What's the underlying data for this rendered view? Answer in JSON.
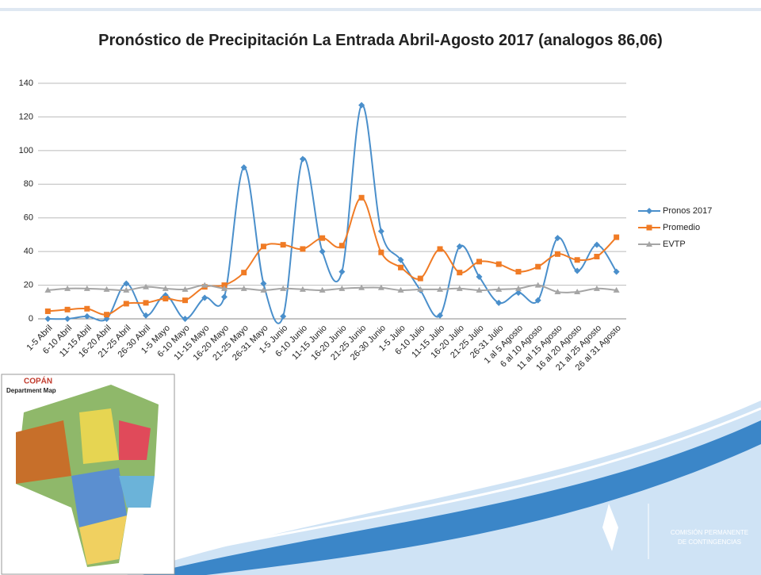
{
  "chart_data": {
    "type": "line",
    "title": "Pronóstico de Precipitación La Entrada Abril-Agosto 2017 (analogos 86,06)",
    "categories": [
      "1-5 Abril",
      "6-10 Abril",
      "11-15 Abril",
      "16-20 Abril",
      "21-25 Abril",
      "26-30 Abril",
      "1-5 Mayo",
      "6-10 Mayo",
      "11-15 Mayo",
      "16-20 Mayo",
      "21-25 Mayo",
      "26-31 Mayo",
      "1-5 Junio",
      "6-10 Junio",
      "11-15 Junio",
      "16-20 Junio",
      "21-25 Junio",
      "26-30 Junio",
      "1-5 Julio",
      "6-10 Julio",
      "11-15 Julio",
      "16-20 Julio",
      "21-25 Julio",
      "26-31 Julio",
      "1 al 5 Agosto",
      "6 al 10 Agosto",
      "11 al 15 Agosto",
      "16 al 20 Agosto",
      "21 al 25 Agosto",
      "26 al 31 Agosto"
    ],
    "series": [
      {
        "name": "Pronos 2017",
        "color": "#4a8fcb",
        "marker": "diamond",
        "values": [
          0,
          0,
          1.5,
          0,
          21,
          2,
          14,
          0,
          12.5,
          13,
          90,
          21,
          1.5,
          95,
          40,
          28,
          127,
          52,
          35,
          17,
          2,
          43,
          25,
          9.5,
          15.5,
          11,
          48,
          28.5,
          44,
          28
        ]
      },
      {
        "name": "Promedio",
        "color": "#f07b25",
        "marker": "square",
        "values": [
          4.5,
          5.5,
          6,
          2.5,
          9,
          9.5,
          12,
          11,
          19,
          20,
          27.5,
          43,
          44,
          41.5,
          48,
          43.5,
          72,
          39.5,
          30.5,
          24,
          41.5,
          27.5,
          34,
          32.5,
          28,
          31,
          38.5,
          35,
          37,
          48.5
        ]
      },
      {
        "name": "EVTP",
        "color": "#a5a5a5",
        "marker": "triangle",
        "values": [
          17,
          18,
          18,
          17.5,
          17,
          19,
          18,
          17.5,
          20,
          18,
          18,
          17,
          18,
          17.5,
          17,
          18,
          18.5,
          18.5,
          17,
          17.5,
          17.5,
          18,
          17,
          17.5,
          18,
          20,
          16,
          16,
          18,
          17
        ]
      }
    ],
    "ylim": [
      0,
      140
    ],
    "yticks": [
      0,
      20,
      40,
      60,
      80,
      100,
      120,
      140
    ],
    "grid": true,
    "legend": "right"
  },
  "map": {
    "title": "COPÁN",
    "subtitle": "Department Map"
  },
  "logo": {
    "line1": "COMISIÓN PERMANENTE",
    "line2": "DE CONTINGENCIAS"
  }
}
